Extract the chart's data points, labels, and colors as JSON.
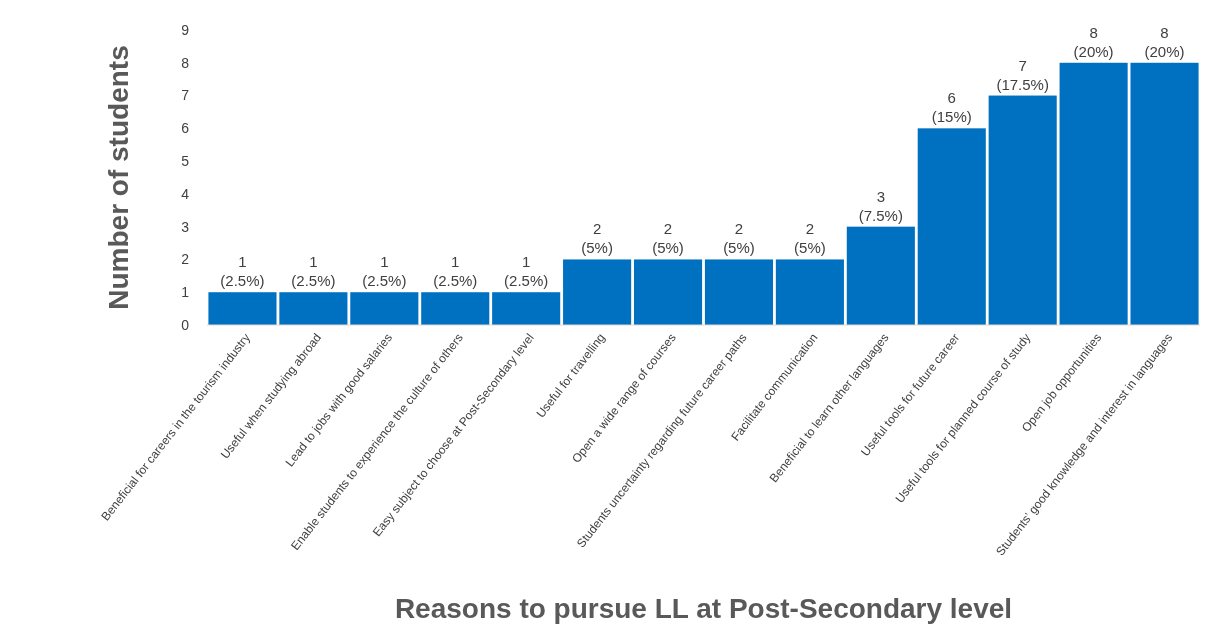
{
  "chart_data": {
    "type": "bar",
    "xlabel": "Reasons to pursue LL at Post-Secondary level",
    "ylabel": "Number of students",
    "categories": [
      "Beneficial for careers in the tourism industry",
      "Useful when studying abroad",
      "Lead to jobs with good salaries",
      "Enable students to experience the culture of others",
      "Easy subject to choose at Post-Secondary level",
      "Useful for travelling",
      "Open a wide range of courses",
      "Students uncertainty regarding future career paths",
      "Facilitate communication",
      "Beneficial to learn other languages",
      "Useful tools for future career",
      "Useful tools for planned course of study",
      "Open job opportunities",
      "Students’ good knowledge and interest in languages"
    ],
    "values": [
      1,
      1,
      1,
      1,
      1,
      2,
      2,
      2,
      2,
      3,
      6,
      7,
      8,
      8
    ],
    "value_labels": [
      "1\n(2.5%)",
      "1\n(2.5%)",
      "1\n(2.5%)",
      "1\n(2.5%)",
      "1\n(2.5%)",
      "2\n(5%)",
      "2\n(5%)",
      "2\n(5%)",
      "2\n(5%)",
      "3\n(7.5%)",
      "6\n(15%)",
      "7\n(17.5%)",
      "8\n(20%)",
      "8\n(20%)"
    ],
    "color": "#0070c0",
    "ylim": [
      0,
      9
    ],
    "yticks": [
      0,
      1,
      2,
      3,
      4,
      5,
      6,
      7,
      8,
      9
    ],
    "grid": false
  }
}
